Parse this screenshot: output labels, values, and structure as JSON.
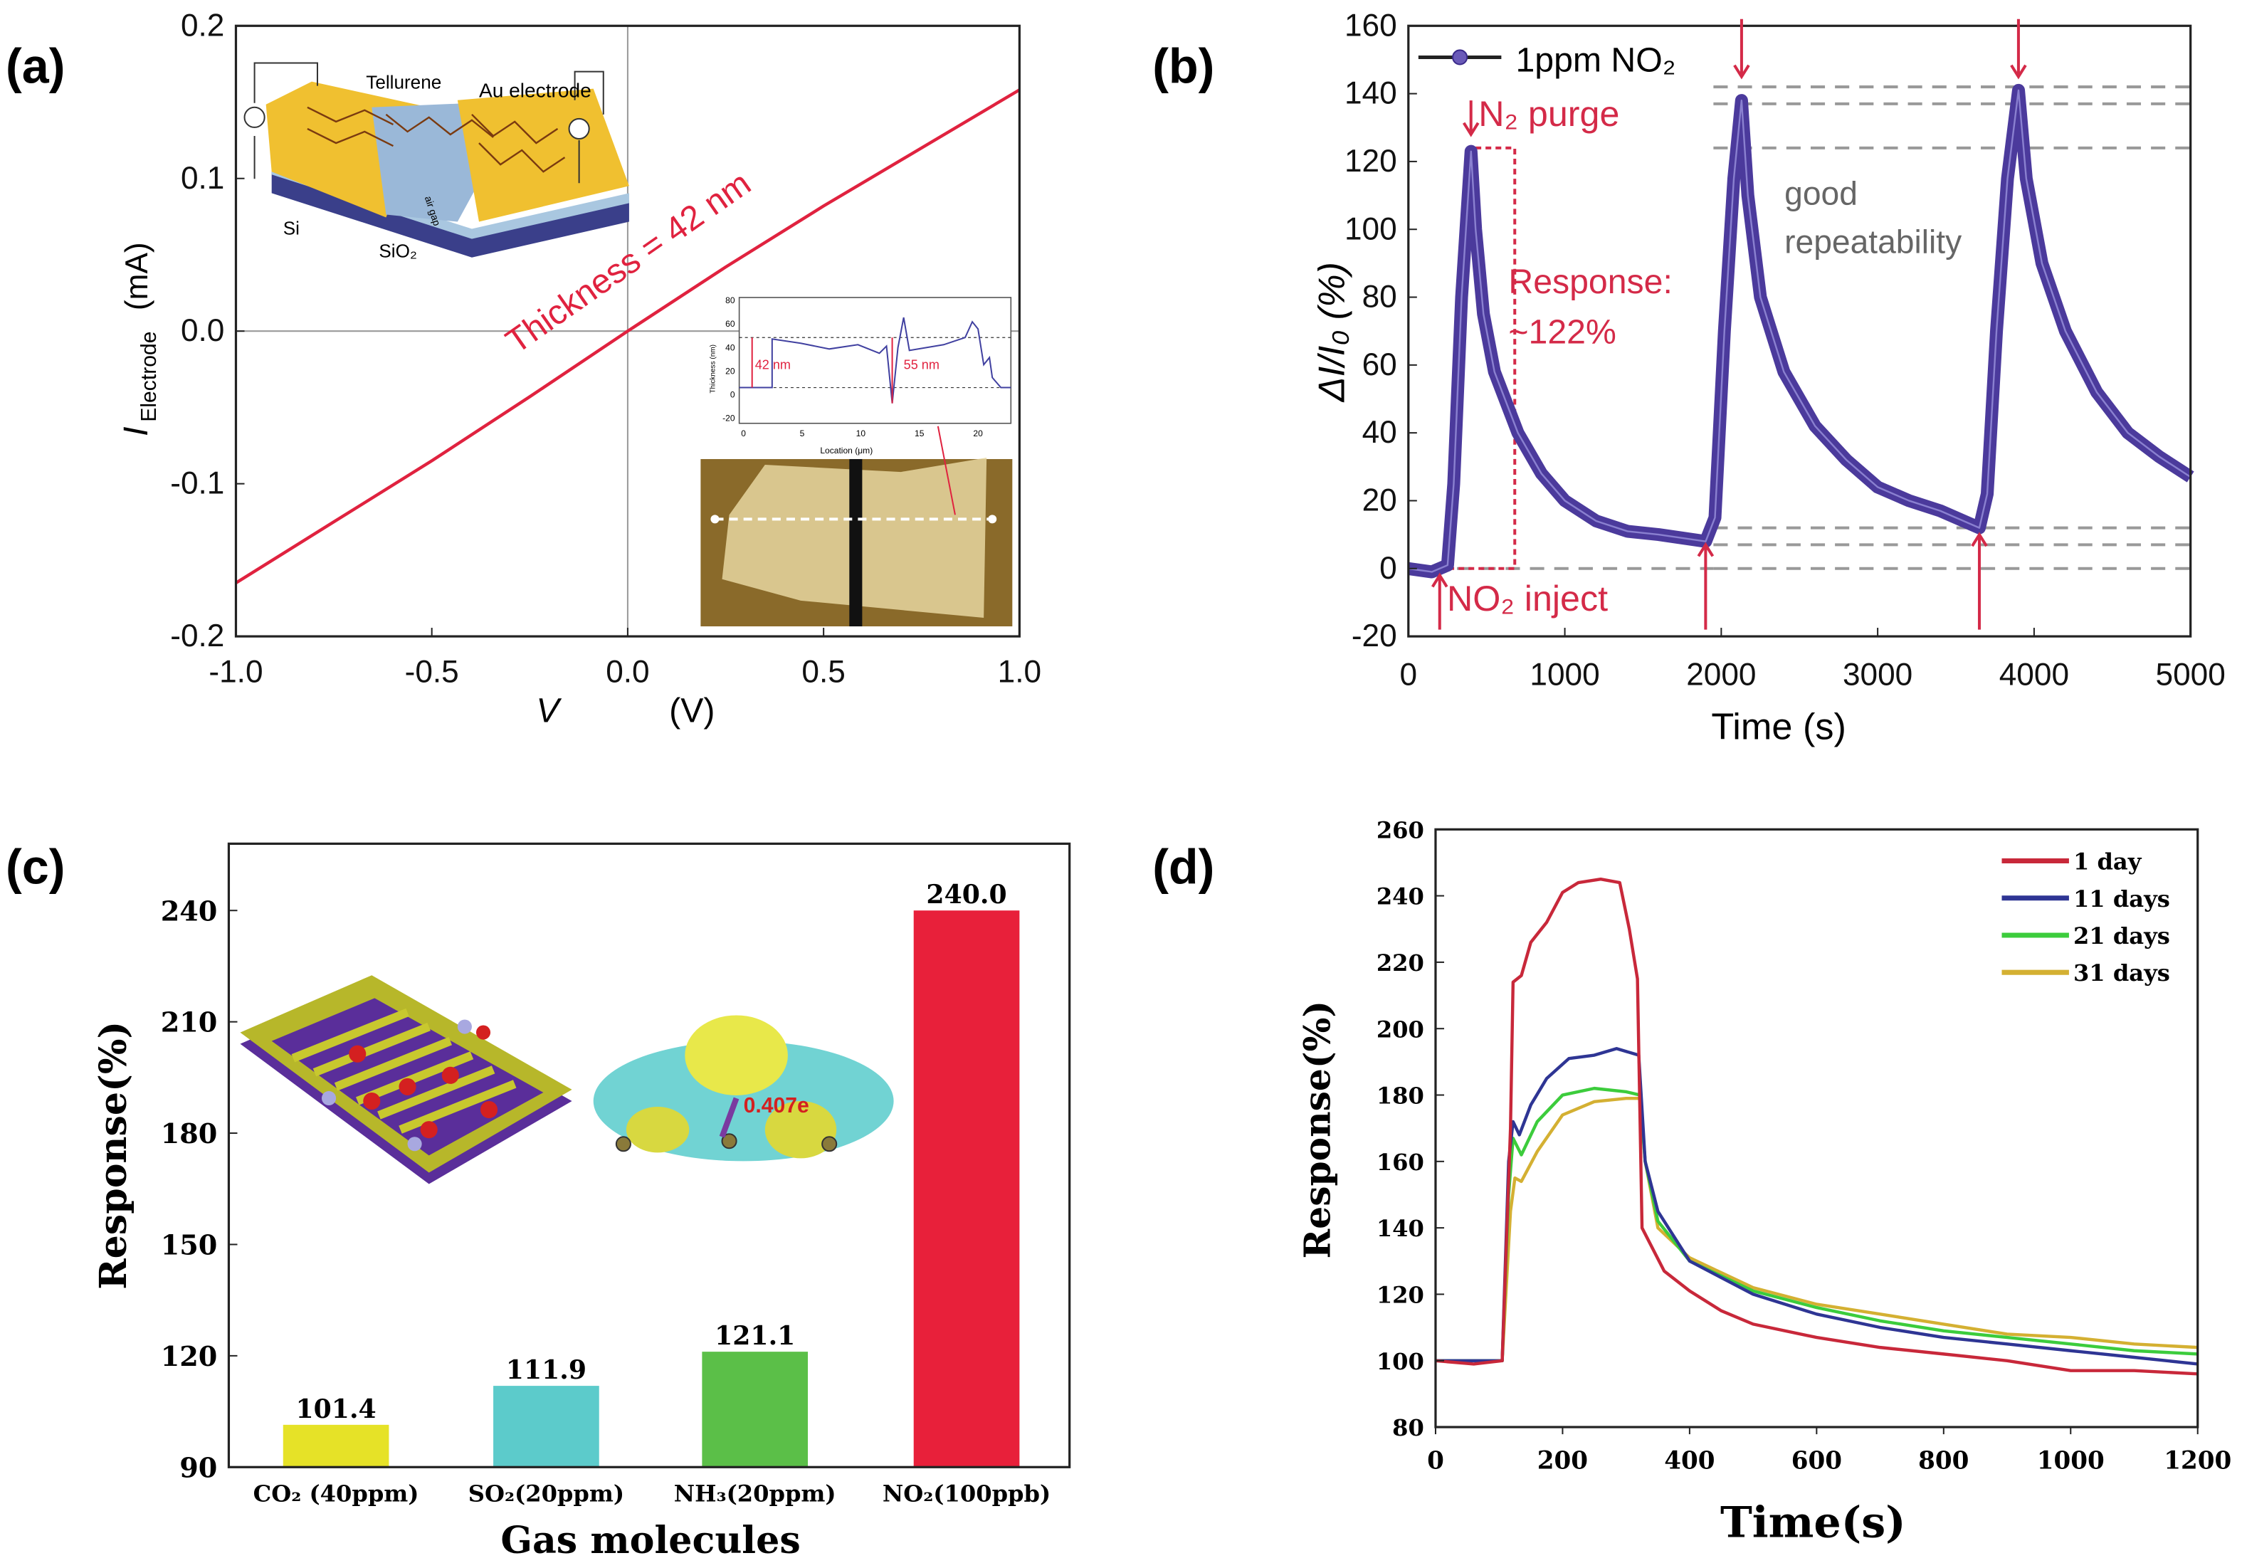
{
  "panels": {
    "a": {
      "label": "(a)"
    },
    "b": {
      "label": "(b)"
    },
    "c": {
      "label": "(c)"
    },
    "d": {
      "label": "(d)"
    }
  },
  "chart_data": [
    {
      "panel": "(a)",
      "type": "line",
      "xlabel_var": "V",
      "xlabel_unit": "(V)",
      "ylabel_var": "I",
      "ylabel_sub": "Electrode",
      "ylabel_unit": "(mA)",
      "xlim": [
        -1.0,
        1.0
      ],
      "ylim": [
        -0.2,
        0.2
      ],
      "xticks": [
        "-1.0",
        "-0.5",
        "0.0",
        "0.5",
        "1.0"
      ],
      "yticks": [
        "-0.2",
        "-0.1",
        "0.0",
        "0.1",
        "0.2"
      ],
      "color": "#e0223f",
      "series": [
        {
          "points": [
            [
              -1,
              -0.165
            ],
            [
              -0.75,
              -0.125
            ],
            [
              -0.5,
              -0.085
            ],
            [
              -0.25,
              -0.043
            ],
            [
              0,
              0
            ],
            [
              0.25,
              0.042
            ],
            [
              0.5,
              0.082
            ],
            [
              0.75,
              0.12
            ],
            [
              1,
              0.158
            ]
          ]
        }
      ],
      "annotation": "Thickness = 42 nm",
      "inset_schematic": {
        "labels": [
          "Tellurene",
          "Au electrode",
          "Si",
          "SiO₂",
          "air gap"
        ]
      },
      "inset_profile": {
        "ylabel": "Thickness (nm)",
        "xlabel": "Location (μm)",
        "yticks": [
          "80",
          "60",
          "40",
          "20",
          "0",
          "-20"
        ],
        "xticks": [
          "0",
          "5",
          "10",
          "15",
          "20"
        ],
        "annotations": [
          "42 nm",
          "55 nm"
        ]
      }
    },
    {
      "panel": "(b)",
      "type": "line",
      "xlabel": "Time (s)",
      "ylabel": "ΔI/I₀ (%)",
      "xlim": [
        0,
        5000
      ],
      "ylim": [
        -20,
        160
      ],
      "xticks": [
        "0",
        "1000",
        "2000",
        "3000",
        "4000",
        "5000"
      ],
      "yticks": [
        "-20",
        "0",
        "20",
        "40",
        "60",
        "80",
        "100",
        "120",
        "140",
        "160"
      ],
      "legend": "top-left",
      "color": "#4b3a9c",
      "series": [
        {
          "name": "1ppm NO₂",
          "points": [
            [
              0,
              0
            ],
            [
              150,
              -1
            ],
            [
              250,
              1
            ],
            [
              290,
              25
            ],
            [
              340,
              80
            ],
            [
              400,
              123
            ],
            [
              430,
              100
            ],
            [
              480,
              75
            ],
            [
              550,
              58
            ],
            [
              700,
              40
            ],
            [
              850,
              28
            ],
            [
              1000,
              20
            ],
            [
              1200,
              14
            ],
            [
              1400,
              11
            ],
            [
              1600,
              10
            ],
            [
              1900,
              8
            ],
            [
              1960,
              15
            ],
            [
              2020,
              70
            ],
            [
              2080,
              115
            ],
            [
              2130,
              138
            ],
            [
              2170,
              110
            ],
            [
              2250,
              80
            ],
            [
              2400,
              58
            ],
            [
              2600,
              42
            ],
            [
              2800,
              32
            ],
            [
              3000,
              24
            ],
            [
              3200,
              20
            ],
            [
              3400,
              17
            ],
            [
              3650,
              12
            ],
            [
              3700,
              22
            ],
            [
              3760,
              70
            ],
            [
              3830,
              115
            ],
            [
              3900,
              141
            ],
            [
              3950,
              115
            ],
            [
              4050,
              90
            ],
            [
              4200,
              70
            ],
            [
              4400,
              52
            ],
            [
              4600,
              40
            ],
            [
              4800,
              33
            ],
            [
              5000,
              27
            ]
          ]
        }
      ],
      "reference_lines": [
        0,
        7,
        12,
        124,
        137,
        142
      ],
      "annotations": {
        "purge": "N₂ purge",
        "inject": "NO₂ inject",
        "response": "Response:",
        "response_value": "~122%",
        "repeat1": "good",
        "repeat2": "repeatability"
      },
      "arrow_times_down": [
        400,
        2130,
        3900
      ],
      "arrow_times_up": [
        200,
        1900,
        3650
      ]
    },
    {
      "panel": "(c)",
      "type": "bar",
      "xlabel": "Gas molecules",
      "ylabel": "Response(%)",
      "ylim": [
        90,
        258
      ],
      "yticks": [
        "90",
        "120",
        "150",
        "180",
        "210",
        "240"
      ],
      "categories": [
        "CO₂ (40ppm)",
        "SO₂(20ppm)",
        "NH₃(20ppm)",
        "NO₂(100ppb)"
      ],
      "values": [
        101.4,
        111.9,
        121.1,
        240.0
      ],
      "data_labels": [
        "101.4",
        "111.9",
        "121.1",
        "240.0"
      ],
      "colors": [
        "#e6e227",
        "#5ccbcb",
        "#5bbf48",
        "#e8203a"
      ],
      "inset_annotation": "0.407e"
    },
    {
      "panel": "(d)",
      "type": "line",
      "xlabel": "Time(s)",
      "ylabel": "Response(%)",
      "xlim": [
        0,
        1200
      ],
      "ylim": [
        80,
        260
      ],
      "xticks": [
        "0",
        "200",
        "400",
        "600",
        "800",
        "1000",
        "1200"
      ],
      "yticks": [
        "80",
        "100",
        "120",
        "140",
        "160",
        "180",
        "200",
        "220",
        "240",
        "260"
      ],
      "legend": "top-right",
      "series": [
        {
          "name": "1 day",
          "color": "#c8283a",
          "points": [
            [
              0,
              100
            ],
            [
              60,
              99
            ],
            [
              105,
              100
            ],
            [
              118,
              170
            ],
            [
              122,
              214
            ],
            [
              135,
              216
            ],
            [
              150,
              226
            ],
            [
              175,
              232
            ],
            [
              200,
              241
            ],
            [
              225,
              244
            ],
            [
              260,
              245
            ],
            [
              290,
              244
            ],
            [
              305,
              230
            ],
            [
              318,
              215
            ],
            [
              325,
              140
            ],
            [
              360,
              127
            ],
            [
              400,
              121
            ],
            [
              450,
              115
            ],
            [
              500,
              111
            ],
            [
              600,
              107
            ],
            [
              700,
              104
            ],
            [
              800,
              102
            ],
            [
              900,
              100
            ],
            [
              1000,
              97
            ],
            [
              1100,
              97
            ],
            [
              1200,
              96
            ]
          ]
        },
        {
          "name": "11 days",
          "color": "#2e3594",
          "points": [
            [
              0,
              100
            ],
            [
              105,
              100
            ],
            [
              115,
              160
            ],
            [
              122,
              172
            ],
            [
              132,
              168
            ],
            [
              150,
              177
            ],
            [
              175,
              185
            ],
            [
              210,
              191
            ],
            [
              250,
              192
            ],
            [
              285,
              194
            ],
            [
              320,
              192
            ],
            [
              330,
              160
            ],
            [
              350,
              145
            ],
            [
              400,
              130
            ],
            [
              500,
              120
            ],
            [
              600,
              114
            ],
            [
              700,
              110
            ],
            [
              800,
              107
            ],
            [
              900,
              105
            ],
            [
              1000,
              103
            ],
            [
              1100,
              101
            ],
            [
              1200,
              99
            ]
          ]
        },
        {
          "name": "21 days",
          "color": "#3ccc3c",
          "points": [
            [
              0,
              100
            ],
            [
              105,
              100
            ],
            [
              115,
              150
            ],
            [
              122,
              167
            ],
            [
              135,
              162
            ],
            [
              160,
              172
            ],
            [
              200,
              180
            ],
            [
              250,
              182
            ],
            [
              300,
              181
            ],
            [
              322,
              180
            ],
            [
              330,
              160
            ],
            [
              350,
              142
            ],
            [
              400,
              130
            ],
            [
              500,
              121
            ],
            [
              600,
              116
            ],
            [
              700,
              112
            ],
            [
              800,
              109
            ],
            [
              900,
              107
            ],
            [
              1000,
              105
            ],
            [
              1100,
              103
            ],
            [
              1200,
              102
            ]
          ]
        },
        {
          "name": "31 days",
          "color": "#d4b032",
          "points": [
            [
              0,
              100
            ],
            [
              105,
              100
            ],
            [
              118,
              145
            ],
            [
              125,
              155
            ],
            [
              135,
              154
            ],
            [
              160,
              163
            ],
            [
              200,
              174
            ],
            [
              250,
              178
            ],
            [
              300,
              179
            ],
            [
              322,
              179
            ],
            [
              330,
              160
            ],
            [
              350,
              140
            ],
            [
              400,
              131
            ],
            [
              500,
              122
            ],
            [
              600,
              117
            ],
            [
              700,
              114
            ],
            [
              800,
              111
            ],
            [
              900,
              108
            ],
            [
              1000,
              107
            ],
            [
              1100,
              105
            ],
            [
              1200,
              104
            ]
          ]
        }
      ]
    }
  ]
}
